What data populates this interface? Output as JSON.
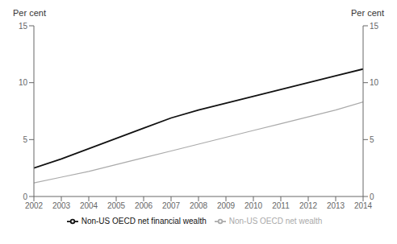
{
  "chart_data": {
    "type": "line",
    "ylabel": "Per cent",
    "y2label": "Per cent",
    "x": [
      2002,
      2003,
      2004,
      2005,
      2006,
      2007,
      2008,
      2009,
      2010,
      2011,
      2012,
      2013,
      2014
    ],
    "series": [
      {
        "name": "Non-US OECD net wealth",
        "color": "#aaaaaa",
        "values": [
          1.2,
          1.7,
          2.2,
          2.8,
          3.4,
          4.0,
          4.6,
          5.2,
          5.8,
          6.4,
          7.0,
          7.6,
          8.3
        ]
      },
      {
        "name": "Non-US OECD net financial wealth",
        "color": "#111111",
        "values": [
          2.5,
          3.3,
          4.2,
          5.1,
          6.0,
          6.9,
          7.6,
          8.2,
          8.8,
          9.4,
          10.0,
          10.6,
          11.2
        ]
      }
    ],
    "xlim": [
      2002,
      2014
    ],
    "xticks": [
      2002,
      2003,
      2004,
      2005,
      2006,
      2007,
      2008,
      2009,
      2010,
      2011,
      2012,
      2013,
      2014
    ],
    "ylim": [
      0,
      15
    ],
    "yticks": [
      0,
      5,
      10,
      15
    ],
    "y2lim": [
      0,
      15
    ],
    "y2ticks": [
      0,
      5,
      10,
      15
    ],
    "grid": false,
    "legend": "bottom"
  }
}
